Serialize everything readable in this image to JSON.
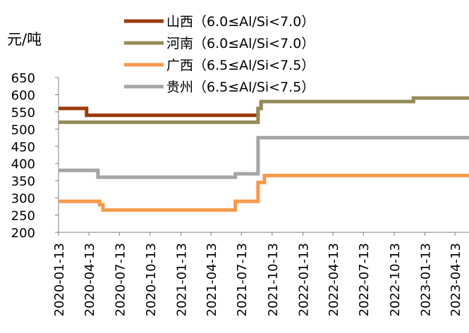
{
  "chart_data": {
    "type": "line",
    "step": true,
    "y_unit_label": "元/吨",
    "title": "",
    "xlabel": "",
    "ylabel": "",
    "ylim": [
      200,
      650
    ],
    "yticks": [
      200,
      250,
      300,
      350,
      400,
      450,
      500,
      550,
      600,
      650
    ],
    "xlim": [
      "2020-01-13",
      "2023-05-25"
    ],
    "xticks": [
      "2020-01-13",
      "2020-04-13",
      "2020-07-13",
      "2020-10-13",
      "2021-01-13",
      "2021-04-13",
      "2021-07-13",
      "2021-10-13",
      "2022-01-13",
      "2022-04-13",
      "2022-07-13",
      "2022-10-13",
      "2023-01-13",
      "2023-04-13"
    ],
    "grid": false,
    "legend_position": "top-center",
    "series": [
      {
        "name": "山西（6.0≤Al/Si<7.0）",
        "color": "#9c3a0a",
        "points": [
          [
            "2020-01-13",
            560
          ],
          [
            "2020-04-06",
            560
          ],
          [
            "2020-04-06",
            540
          ],
          [
            "2021-09-01",
            540
          ],
          [
            "2021-09-01",
            560
          ],
          [
            "2021-09-10",
            560
          ],
          [
            "2021-09-10",
            580
          ]
        ]
      },
      {
        "name": "河南（6.0≤Al/Si<7.0）",
        "color": "#958b5a",
        "points": [
          [
            "2020-01-13",
            520
          ],
          [
            "2021-09-01",
            520
          ],
          [
            "2021-09-01",
            560
          ],
          [
            "2021-09-10",
            560
          ],
          [
            "2021-09-10",
            580
          ],
          [
            "2022-12-10",
            580
          ],
          [
            "2022-12-10",
            590
          ],
          [
            "2023-05-25",
            590
          ]
        ]
      },
      {
        "name": "广西（6.5≤Al/Si<7.5）",
        "color": "#f6994a",
        "points": [
          [
            "2020-01-13",
            290
          ],
          [
            "2020-05-15",
            290
          ],
          [
            "2020-05-15",
            280
          ],
          [
            "2020-05-25",
            280
          ],
          [
            "2020-05-25",
            265
          ],
          [
            "2021-06-25",
            265
          ],
          [
            "2021-06-25",
            290
          ],
          [
            "2021-09-01",
            290
          ],
          [
            "2021-09-01",
            345
          ],
          [
            "2021-09-20",
            345
          ],
          [
            "2021-09-20",
            365
          ],
          [
            "2023-05-25",
            365
          ]
        ]
      },
      {
        "name": "贵州（6.5≤Al/Si<7.5）",
        "color": "#a5a5a5",
        "points": [
          [
            "2020-01-13",
            380
          ],
          [
            "2020-05-10",
            380
          ],
          [
            "2020-05-10",
            360
          ],
          [
            "2021-06-25",
            360
          ],
          [
            "2021-06-25",
            370
          ],
          [
            "2021-09-01",
            370
          ],
          [
            "2021-09-01",
            475
          ],
          [
            "2023-05-25",
            475
          ]
        ]
      }
    ]
  }
}
